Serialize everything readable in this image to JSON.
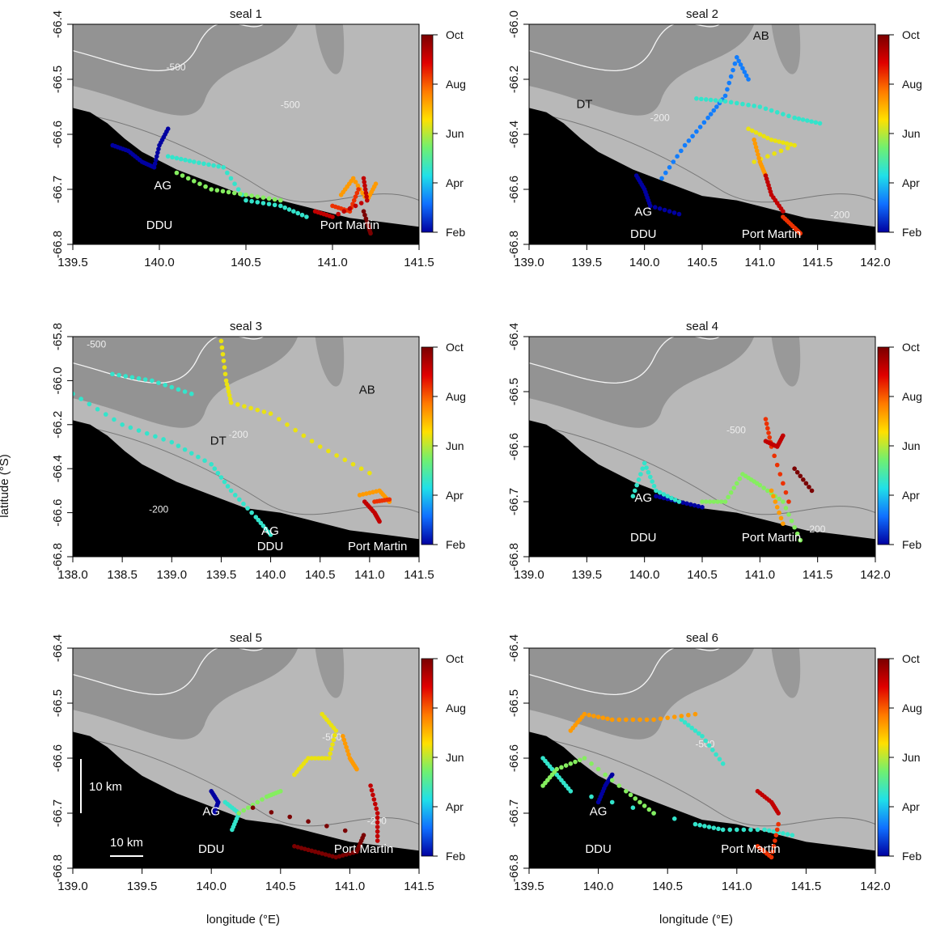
{
  "figure": {
    "xlabel": "longitude (°E)",
    "ylabel": "latitude (°S)",
    "colorbar_ticks": [
      "Oct",
      "Aug",
      "Jun",
      "Apr",
      "Feb"
    ],
    "colorbar_colors": [
      "#7a0000",
      "#e00000",
      "#ff7a00",
      "#ffe000",
      "#70f070",
      "#20e0e8",
      "#1070ff",
      "#0000a0"
    ],
    "land_color": "#000000",
    "shelf_color": "#b8b8b8",
    "deep_color": "#8c8c8c",
    "scale_bar_label": "10 km"
  },
  "chart_data": [
    {
      "type": "scatter",
      "title": "seal 1",
      "xlim": [
        139.5,
        141.5
      ],
      "ylim": [
        -66.8,
        -66.4
      ],
      "xticks": [
        "139.5",
        "140.0",
        "140.5",
        "141.0",
        "141.5"
      ],
      "yticks": [
        "-66.4",
        "-66.5",
        "-66.6",
        "-66.7",
        "-66.8"
      ],
      "place_labels": [
        "AG",
        "DDU",
        "Port Martin"
      ],
      "contour_labels": [
        "-500",
        "-500"
      ],
      "tracks": [
        {
          "month": "Feb",
          "points": [
            [
              139.73,
              -66.62
            ],
            [
              139.82,
              -66.63
            ],
            [
              139.9,
              -66.65
            ],
            [
              139.97,
              -66.66
            ],
            [
              140.0,
              -66.62
            ],
            [
              140.05,
              -66.59
            ]
          ]
        },
        {
          "month": "Apr",
          "points": [
            [
              140.05,
              -66.64
            ],
            [
              140.2,
              -66.65
            ],
            [
              140.37,
              -66.66
            ],
            [
              140.5,
              -66.72
            ],
            [
              140.7,
              -66.73
            ],
            [
              140.85,
              -66.75
            ]
          ]
        },
        {
          "month": "May",
          "points": [
            [
              140.1,
              -66.67
            ],
            [
              140.3,
              -66.7
            ],
            [
              140.5,
              -66.71
            ],
            [
              140.7,
              -66.72
            ]
          ]
        },
        {
          "month": "Jul",
          "points": [
            [
              141.05,
              -66.71
            ],
            [
              141.12,
              -66.68
            ],
            [
              141.2,
              -66.72
            ],
            [
              141.25,
              -66.69
            ]
          ]
        },
        {
          "month": "Aug",
          "points": [
            [
              141.0,
              -66.73
            ],
            [
              141.1,
              -66.74
            ],
            [
              141.15,
              -66.7
            ]
          ]
        },
        {
          "month": "Sep",
          "points": [
            [
              140.9,
              -66.74
            ],
            [
              141.0,
              -66.75
            ],
            [
              141.2,
              -66.72
            ],
            [
              141.18,
              -66.68
            ]
          ]
        },
        {
          "month": "Oct",
          "points": [
            [
              141.2,
              -66.76
            ],
            [
              141.22,
              -66.78
            ],
            [
              141.18,
              -66.74
            ]
          ]
        }
      ]
    },
    {
      "type": "scatter",
      "title": "seal 2",
      "xlim": [
        139.0,
        142.0
      ],
      "ylim": [
        -66.8,
        -66.0
      ],
      "xticks": [
        "139.0",
        "139.5",
        "140.0",
        "140.5",
        "141.0",
        "141.5",
        "142.0"
      ],
      "yticks": [
        "-66.0",
        "-66.2",
        "-66.4",
        "-66.6",
        "-66.8"
      ],
      "place_labels": [
        "AB",
        "DT",
        "AG",
        "DDU",
        "Port Martin"
      ],
      "contour_labels": [
        "-200",
        "-200"
      ],
      "tracks": [
        {
          "month": "Feb",
          "points": [
            [
              139.93,
              -66.55
            ],
            [
              140.0,
              -66.6
            ],
            [
              140.05,
              -66.66
            ],
            [
              140.3,
              -66.69
            ]
          ]
        },
        {
          "month": "Mar",
          "points": [
            [
              140.15,
              -66.56
            ],
            [
              140.35,
              -66.44
            ],
            [
              140.55,
              -66.34
            ],
            [
              140.7,
              -66.26
            ],
            [
              140.8,
              -66.12
            ],
            [
              140.9,
              -66.2
            ]
          ]
        },
        {
          "month": "Apr",
          "points": [
            [
              140.45,
              -66.27
            ],
            [
              140.7,
              -66.28
            ],
            [
              141.0,
              -66.3
            ],
            [
              141.3,
              -66.34
            ],
            [
              141.52,
              -66.36
            ]
          ]
        },
        {
          "month": "Jun",
          "points": [
            [
              140.9,
              -66.38
            ],
            [
              141.1,
              -66.42
            ],
            [
              141.3,
              -66.44
            ],
            [
              140.95,
              -66.5
            ]
          ]
        },
        {
          "month": "Jul",
          "points": [
            [
              140.95,
              -66.42
            ],
            [
              141.0,
              -66.5
            ],
            [
              141.05,
              -66.55
            ]
          ]
        },
        {
          "month": "Aug",
          "points": [
            [
              141.2,
              -66.7
            ],
            [
              141.3,
              -66.74
            ],
            [
              141.35,
              -66.76
            ]
          ]
        },
        {
          "month": "Sep",
          "points": [
            [
              141.05,
              -66.55
            ],
            [
              141.1,
              -66.62
            ],
            [
              141.2,
              -66.68
            ]
          ]
        }
      ]
    },
    {
      "type": "scatter",
      "title": "seal 3",
      "xlim": [
        138.0,
        141.5
      ],
      "ylim": [
        -66.8,
        -65.8
      ],
      "xticks": [
        "138.0",
        "138.5",
        "139.0",
        "139.5",
        "140.0",
        "140.5",
        "141.0",
        "141.5"
      ],
      "yticks": [
        "-65.8",
        "-66.0",
        "-66.2",
        "-66.4",
        "-66.6",
        "-66.8"
      ],
      "place_labels": [
        "AB",
        "DT",
        "AG",
        "DDU",
        "Port Martin"
      ],
      "contour_labels": [
        "-500",
        "-200",
        "-200"
      ],
      "tracks": [
        {
          "month": "Apr",
          "points": [
            [
              138.0,
              -66.06
            ],
            [
              138.5,
              -66.2
            ],
            [
              139.0,
              -66.28
            ],
            [
              139.4,
              -66.38
            ],
            [
              139.6,
              -66.5
            ],
            [
              139.85,
              -66.62
            ],
            [
              140.0,
              -66.7
            ]
          ]
        },
        {
          "month": "Apr",
          "points": [
            [
              138.4,
              -65.97
            ],
            [
              138.8,
              -66.0
            ],
            [
              139.2,
              -66.06
            ]
          ]
        },
        {
          "month": "Jun",
          "points": [
            [
              139.5,
              -65.82
            ],
            [
              139.55,
              -66.0
            ],
            [
              139.6,
              -66.1
            ],
            [
              140.0,
              -66.15
            ],
            [
              140.5,
              -66.3
            ],
            [
              141.0,
              -66.42
            ]
          ]
        },
        {
          "month": "Jul",
          "points": [
            [
              140.9,
              -66.52
            ],
            [
              141.1,
              -66.5
            ],
            [
              141.2,
              -66.55
            ]
          ]
        },
        {
          "month": "Aug",
          "points": [
            [
              141.05,
              -66.55
            ],
            [
              141.2,
              -66.54
            ]
          ]
        },
        {
          "month": "Sep",
          "points": [
            [
              140.95,
              -66.55
            ],
            [
              141.05,
              -66.6
            ],
            [
              141.1,
              -66.64
            ]
          ]
        }
      ]
    },
    {
      "type": "scatter",
      "title": "seal 4",
      "xlim": [
        139.0,
        142.0
      ],
      "ylim": [
        -66.8,
        -66.4
      ],
      "xticks": [
        "139.0",
        "139.5",
        "140.0",
        "140.5",
        "141.0",
        "141.5",
        "142.0"
      ],
      "yticks": [
        "-66.4",
        "-66.5",
        "-66.6",
        "-66.7",
        "-66.8"
      ],
      "place_labels": [
        "AG",
        "DDU",
        "Port Martin"
      ],
      "contour_labels": [
        "-500",
        "-200"
      ],
      "tracks": [
        {
          "month": "Feb",
          "points": [
            [
              140.1,
              -66.69
            ],
            [
              140.3,
              -66.7
            ],
            [
              140.5,
              -66.71
            ]
          ]
        },
        {
          "month": "Apr",
          "points": [
            [
              139.9,
              -66.69
            ],
            [
              140.0,
              -66.63
            ],
            [
              140.1,
              -66.68
            ],
            [
              140.3,
              -66.7
            ]
          ]
        },
        {
          "month": "May",
          "points": [
            [
              140.5,
              -66.7
            ],
            [
              140.7,
              -66.7
            ],
            [
              140.85,
              -66.65
            ],
            [
              141.0,
              -66.67
            ],
            [
              141.2,
              -66.7
            ],
            [
              141.35,
              -66.77
            ]
          ]
        },
        {
          "month": "Jul",
          "points": [
            [
              141.1,
              -66.68
            ],
            [
              141.2,
              -66.74
            ]
          ]
        },
        {
          "month": "Aug",
          "points": [
            [
              141.05,
              -66.55
            ],
            [
              141.1,
              -66.6
            ],
            [
              141.25,
              -66.7
            ]
          ]
        },
        {
          "month": "Sep",
          "points": [
            [
              141.05,
              -66.59
            ],
            [
              141.15,
              -66.6
            ],
            [
              141.2,
              -66.58
            ]
          ]
        },
        {
          "month": "Oct",
          "points": [
            [
              141.3,
              -66.64
            ],
            [
              141.45,
              -66.68
            ]
          ]
        }
      ]
    },
    {
      "type": "scatter",
      "title": "seal 5",
      "xlim": [
        139.0,
        141.5
      ],
      "ylim": [
        -66.8,
        -66.4
      ],
      "xticks": [
        "139.0",
        "139.5",
        "140.0",
        "140.5",
        "141.0",
        "141.5"
      ],
      "yticks": [
        "-66.4",
        "-66.5",
        "-66.6",
        "-66.7",
        "-66.8"
      ],
      "place_labels": [
        "AG",
        "DDU",
        "Port Martin"
      ],
      "contour_labels": [
        "-500",
        "-200"
      ],
      "tracks": [
        {
          "month": "Feb",
          "points": [
            [
              140.0,
              -66.66
            ],
            [
              140.05,
              -66.68
            ],
            [
              140.02,
              -66.7
            ]
          ]
        },
        {
          "month": "Apr",
          "points": [
            [
              140.1,
              -66.68
            ],
            [
              140.2,
              -66.7
            ],
            [
              140.15,
              -66.73
            ]
          ]
        },
        {
          "month": "May",
          "points": [
            [
              140.2,
              -66.7
            ],
            [
              140.4,
              -66.67
            ],
            [
              140.5,
              -66.66
            ]
          ]
        },
        {
          "month": "Jun",
          "points": [
            [
              140.8,
              -66.52
            ],
            [
              140.9,
              -66.55
            ],
            [
              140.85,
              -66.6
            ],
            [
              140.7,
              -66.6
            ],
            [
              140.6,
              -66.63
            ]
          ]
        },
        {
          "month": "Jul",
          "points": [
            [
              140.95,
              -66.56
            ],
            [
              141.0,
              -66.6
            ],
            [
              141.05,
              -66.62
            ]
          ]
        },
        {
          "month": "Sep",
          "points": [
            [
              141.15,
              -66.65
            ],
            [
              141.2,
              -66.7
            ],
            [
              141.2,
              -66.75
            ]
          ]
        },
        {
          "month": "Oct",
          "points": [
            [
              140.6,
              -66.76
            ],
            [
              140.75,
              -66.77
            ],
            [
              140.9,
              -66.78
            ],
            [
              141.05,
              -66.77
            ],
            [
              141.1,
              -66.74
            ],
            [
              140.3,
              -66.69
            ]
          ]
        }
      ]
    },
    {
      "type": "scatter",
      "title": "seal 6",
      "xlim": [
        139.5,
        142.0
      ],
      "ylim": [
        -66.8,
        -66.4
      ],
      "xticks": [
        "139.5",
        "140.0",
        "140.5",
        "141.0",
        "141.5",
        "142.0"
      ],
      "yticks": [
        "-66.4",
        "-66.5",
        "-66.6",
        "-66.7",
        "-66.8"
      ],
      "place_labels": [
        "AG",
        "DDU",
        "Port Martin"
      ],
      "contour_labels": [
        "-500"
      ],
      "tracks": [
        {
          "month": "Feb",
          "points": [
            [
              140.0,
              -66.68
            ],
            [
              140.05,
              -66.65
            ],
            [
              140.1,
              -66.63
            ]
          ]
        },
        {
          "month": "Apr",
          "points": [
            [
              139.6,
              -66.6
            ],
            [
              139.7,
              -66.63
            ],
            [
              139.8,
              -66.66
            ],
            [
              140.7,
              -66.72
            ],
            [
              140.9,
              -66.73
            ],
            [
              141.2,
              -66.73
            ],
            [
              141.4,
              -66.74
            ]
          ]
        },
        {
          "month": "Apr",
          "points": [
            [
              140.6,
              -66.53
            ],
            [
              140.75,
              -66.56
            ],
            [
              140.9,
              -66.61
            ]
          ]
        },
        {
          "month": "May",
          "points": [
            [
              139.6,
              -66.65
            ],
            [
              139.7,
              -66.62
            ],
            [
              139.9,
              -66.6
            ],
            [
              140.2,
              -66.66
            ],
            [
              140.4,
              -66.7
            ]
          ]
        },
        {
          "month": "Jul",
          "points": [
            [
              139.8,
              -66.55
            ],
            [
              139.9,
              -66.52
            ],
            [
              140.1,
              -66.53
            ],
            [
              140.4,
              -66.53
            ],
            [
              140.7,
              -66.52
            ]
          ]
        },
        {
          "month": "Aug",
          "points": [
            [
              141.15,
              -66.76
            ],
            [
              141.25,
              -66.78
            ],
            [
              141.3,
              -66.72
            ]
          ]
        },
        {
          "month": "Sep",
          "points": [
            [
              141.15,
              -66.66
            ],
            [
              141.25,
              -66.68
            ],
            [
              141.3,
              -66.7
            ]
          ]
        }
      ]
    }
  ]
}
